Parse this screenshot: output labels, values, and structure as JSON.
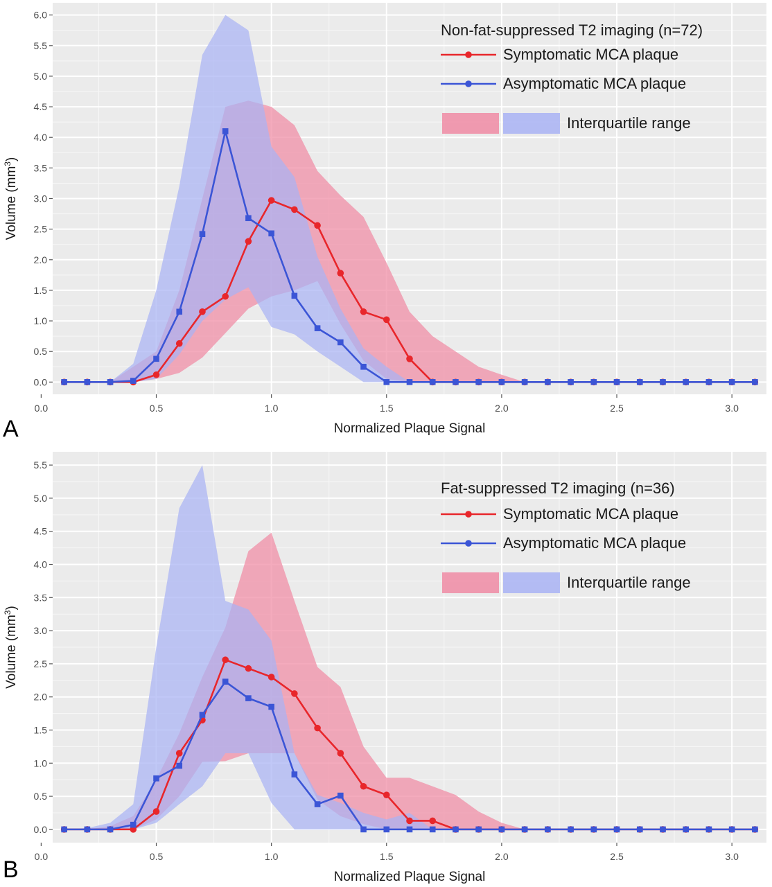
{
  "chart_data": [
    {
      "type": "line",
      "panel_label": "A",
      "title": "",
      "legend_title": "Non-fat-suppressed T2 imaging (n=72)",
      "xlabel": "Normalized Plaque Signal",
      "ylabel": "Volume (mm",
      "ylabel_sup": "3",
      "ylabel_end": ")",
      "xlim": [
        0.05,
        3.15
      ],
      "ylim": [
        -0.2,
        6.2
      ],
      "xticks": [
        0.0,
        0.5,
        1.0,
        1.5,
        2.0,
        2.5,
        3.0
      ],
      "xtick_labels": [
        "0.0",
        "0.5",
        "1.0",
        "1.5",
        "2.0",
        "2.5",
        "3.0"
      ],
      "yticks": [
        0.0,
        0.5,
        1.0,
        1.5,
        2.0,
        2.5,
        3.0,
        3.5,
        4.0,
        4.5,
        5.0,
        5.5,
        6.0
      ],
      "ytick_labels": [
        "0.0",
        "0.5",
        "1.0",
        "1.5",
        "2.0",
        "2.5",
        "3.0",
        "3.5",
        "4.0",
        "4.5",
        "5.0",
        "5.5",
        "6.0"
      ],
      "grid": true,
      "legend_position": "top-right",
      "legend_ribbon_label": "Interquartile range",
      "series": [
        {
          "name": "Symptomatic MCA plaque",
          "color": "#e8262b",
          "marker": "circle",
          "points": [
            [
              0.1,
              0
            ],
            [
              0.2,
              0
            ],
            [
              0.3,
              0
            ],
            [
              0.4,
              0
            ],
            [
              0.5,
              0.12
            ],
            [
              0.6,
              0.63
            ],
            [
              0.7,
              1.15
            ],
            [
              0.8,
              1.4
            ],
            [
              0.9,
              2.3
            ],
            [
              1.0,
              2.97
            ],
            [
              1.1,
              2.82
            ],
            [
              1.2,
              2.56
            ],
            [
              1.3,
              1.78
            ],
            [
              1.4,
              1.15
            ],
            [
              1.5,
              1.02
            ],
            [
              1.6,
              0.38
            ],
            [
              1.7,
              0
            ],
            [
              1.8,
              0
            ],
            [
              1.9,
              0
            ],
            [
              2.0,
              0
            ],
            [
              2.1,
              0
            ],
            [
              2.2,
              0
            ],
            [
              2.3,
              0
            ],
            [
              2.4,
              0
            ],
            [
              2.5,
              0
            ],
            [
              2.6,
              0
            ],
            [
              2.7,
              0
            ],
            [
              2.8,
              0
            ],
            [
              2.9,
              0
            ],
            [
              3.0,
              0
            ],
            [
              3.1,
              0
            ]
          ],
          "ribbon": [
            [
              0.1,
              0,
              0
            ],
            [
              0.2,
              0,
              0
            ],
            [
              0.3,
              0,
              0
            ],
            [
              0.4,
              0,
              0.25
            ],
            [
              0.5,
              0.05,
              0.5
            ],
            [
              0.6,
              0.15,
              1.5
            ],
            [
              0.7,
              0.4,
              3.0
            ],
            [
              0.8,
              0.8,
              4.5
            ],
            [
              0.9,
              1.2,
              4.6
            ],
            [
              1.0,
              1.4,
              4.5
            ],
            [
              1.1,
              1.5,
              4.2
            ],
            [
              1.2,
              1.65,
              3.45
            ],
            [
              1.3,
              0.95,
              3.05
            ],
            [
              1.4,
              0.35,
              2.7
            ],
            [
              1.5,
              0.05,
              1.95
            ],
            [
              1.6,
              0,
              1.15
            ],
            [
              1.7,
              0,
              0.75
            ],
            [
              1.8,
              0,
              0.5
            ],
            [
              1.9,
              0,
              0.25
            ],
            [
              2.0,
              0,
              0.12
            ],
            [
              2.1,
              0,
              0
            ]
          ],
          "ribbon_color": "#f08ba4"
        },
        {
          "name": "Asymptomatic MCA plaque",
          "color": "#3b55d6",
          "marker": "square",
          "points": [
            [
              0.1,
              0
            ],
            [
              0.2,
              0
            ],
            [
              0.3,
              0
            ],
            [
              0.4,
              0.02
            ],
            [
              0.5,
              0.38
            ],
            [
              0.6,
              1.15
            ],
            [
              0.7,
              2.42
            ],
            [
              0.8,
              4.1
            ],
            [
              0.9,
              2.68
            ],
            [
              1.0,
              2.43
            ],
            [
              1.1,
              1.41
            ],
            [
              1.2,
              0.88
            ],
            [
              1.3,
              0.65
            ],
            [
              1.4,
              0.25
            ],
            [
              1.5,
              0
            ],
            [
              1.6,
              0
            ],
            [
              1.7,
              0
            ],
            [
              1.8,
              0
            ],
            [
              1.9,
              0
            ],
            [
              2.0,
              0
            ],
            [
              2.1,
              0
            ],
            [
              2.2,
              0
            ],
            [
              2.3,
              0
            ],
            [
              2.4,
              0
            ],
            [
              2.5,
              0
            ],
            [
              2.6,
              0
            ],
            [
              2.7,
              0
            ],
            [
              2.8,
              0
            ],
            [
              2.9,
              0
            ],
            [
              3.0,
              0
            ],
            [
              3.1,
              0
            ]
          ],
          "ribbon": [
            [
              0.1,
              0,
              0
            ],
            [
              0.2,
              0,
              0
            ],
            [
              0.3,
              0,
              0
            ],
            [
              0.4,
              0,
              0.3
            ],
            [
              0.5,
              0.05,
              1.5
            ],
            [
              0.6,
              0.45,
              3.2
            ],
            [
              0.7,
              1.0,
              5.35
            ],
            [
              0.8,
              1.35,
              6.0
            ],
            [
              0.9,
              1.55,
              5.75
            ],
            [
              1.0,
              0.9,
              3.85
            ],
            [
              1.1,
              0.78,
              3.35
            ],
            [
              1.2,
              0.5,
              2.05
            ],
            [
              1.3,
              0.25,
              1.2
            ],
            [
              1.4,
              0,
              0.55
            ],
            [
              1.5,
              0,
              0.25
            ],
            [
              1.6,
              0,
              0
            ]
          ],
          "ribbon_color": "#a9b3f4"
        }
      ]
    },
    {
      "type": "line",
      "panel_label": "B",
      "title": "",
      "legend_title": "Fat-suppressed T2 imaging (n=36)",
      "xlabel": "Normalized Plaque Signal",
      "ylabel": "Volume (mm",
      "ylabel_sup": "3",
      "ylabel_end": ")",
      "xlim": [
        0.05,
        3.15
      ],
      "ylim": [
        -0.2,
        5.7
      ],
      "xticks": [
        0.0,
        0.5,
        1.0,
        1.5,
        2.0,
        2.5,
        3.0
      ],
      "xtick_labels": [
        "0.0",
        "0.5",
        "1.0",
        "1.5",
        "2.0",
        "2.5",
        "3.0"
      ],
      "yticks": [
        0.0,
        0.5,
        1.0,
        1.5,
        2.0,
        2.5,
        3.0,
        3.5,
        4.0,
        4.5,
        5.0,
        5.5
      ],
      "ytick_labels": [
        "0.0",
        "0.5",
        "1.0",
        "1.5",
        "2.0",
        "2.5",
        "3.0",
        "3.5",
        "4.0",
        "4.5",
        "5.0",
        "5.5"
      ],
      "grid": true,
      "legend_position": "top-right",
      "legend_ribbon_label": "Interquartile range",
      "series": [
        {
          "name": "Symptomatic MCA plaque",
          "color": "#e8262b",
          "marker": "circle",
          "points": [
            [
              0.1,
              0
            ],
            [
              0.2,
              0
            ],
            [
              0.3,
              0
            ],
            [
              0.4,
              0
            ],
            [
              0.5,
              0.27
            ],
            [
              0.6,
              1.15
            ],
            [
              0.7,
              1.65
            ],
            [
              0.8,
              2.56
            ],
            [
              0.9,
              2.43
            ],
            [
              1.0,
              2.3
            ],
            [
              1.1,
              2.05
            ],
            [
              1.2,
              1.53
            ],
            [
              1.3,
              1.15
            ],
            [
              1.4,
              0.65
            ],
            [
              1.5,
              0.52
            ],
            [
              1.6,
              0.13
            ],
            [
              1.7,
              0.13
            ],
            [
              1.8,
              0
            ],
            [
              1.9,
              0
            ],
            [
              2.0,
              0
            ],
            [
              2.1,
              0
            ],
            [
              2.2,
              0
            ],
            [
              2.3,
              0
            ],
            [
              2.4,
              0
            ],
            [
              2.5,
              0
            ],
            [
              2.6,
              0
            ],
            [
              2.7,
              0
            ],
            [
              2.8,
              0
            ],
            [
              2.9,
              0
            ],
            [
              3.0,
              0
            ],
            [
              3.1,
              0
            ]
          ],
          "ribbon": [
            [
              0.1,
              0,
              0
            ],
            [
              0.2,
              0,
              0
            ],
            [
              0.3,
              0,
              0.05
            ],
            [
              0.4,
              0,
              0.2
            ],
            [
              0.5,
              0.15,
              0.75
            ],
            [
              0.6,
              0.5,
              1.45
            ],
            [
              0.7,
              1.02,
              2.3
            ],
            [
              0.8,
              1.03,
              3.05
            ],
            [
              0.9,
              1.15,
              4.2
            ],
            [
              1.0,
              1.15,
              4.48
            ],
            [
              1.1,
              1.15,
              3.45
            ],
            [
              1.2,
              0.45,
              2.45
            ],
            [
              1.3,
              0.2,
              2.15
            ],
            [
              1.4,
              0.08,
              1.25
            ],
            [
              1.5,
              0,
              0.78
            ],
            [
              1.6,
              0,
              0.78
            ],
            [
              1.7,
              0,
              0.65
            ],
            [
              1.8,
              0,
              0.52
            ],
            [
              1.9,
              0,
              0.27
            ],
            [
              2.0,
              0,
              0.1
            ],
            [
              2.1,
              0,
              0
            ]
          ],
          "ribbon_color": "#f08ba4"
        },
        {
          "name": "Asymptomatic MCA plaque",
          "color": "#3b55d6",
          "marker": "square",
          "points": [
            [
              0.1,
              0
            ],
            [
              0.2,
              0
            ],
            [
              0.3,
              0
            ],
            [
              0.4,
              0.07
            ],
            [
              0.5,
              0.77
            ],
            [
              0.6,
              0.96
            ],
            [
              0.7,
              1.73
            ],
            [
              0.8,
              2.23
            ],
            [
              0.9,
              1.98
            ],
            [
              1.0,
              1.85
            ],
            [
              1.1,
              0.83
            ],
            [
              1.2,
              0.38
            ],
            [
              1.3,
              0.51
            ],
            [
              1.4,
              0
            ],
            [
              1.5,
              0
            ],
            [
              1.6,
              0
            ],
            [
              1.7,
              0
            ],
            [
              1.8,
              0
            ],
            [
              1.9,
              0
            ],
            [
              2.0,
              0
            ],
            [
              2.1,
              0
            ],
            [
              2.2,
              0
            ],
            [
              2.3,
              0
            ],
            [
              2.4,
              0
            ],
            [
              2.5,
              0
            ],
            [
              2.6,
              0
            ],
            [
              2.7,
              0
            ],
            [
              2.8,
              0
            ],
            [
              2.9,
              0
            ],
            [
              3.0,
              0
            ],
            [
              3.1,
              0
            ]
          ],
          "ribbon": [
            [
              0.1,
              0,
              0
            ],
            [
              0.2,
              0,
              0.02
            ],
            [
              0.3,
              0,
              0.1
            ],
            [
              0.4,
              0,
              0.38
            ],
            [
              0.5,
              0.1,
              2.75
            ],
            [
              0.6,
              0.38,
              4.85
            ],
            [
              0.7,
              0.65,
              5.5
            ],
            [
              0.8,
              1.15,
              3.45
            ],
            [
              0.9,
              1.15,
              3.32
            ],
            [
              1.0,
              0.4,
              2.85
            ],
            [
              1.1,
              0,
              1.15
            ],
            [
              1.2,
              0,
              0.52
            ],
            [
              1.3,
              0,
              0.4
            ],
            [
              1.4,
              0,
              0.25
            ],
            [
              1.5,
              0,
              0.15
            ],
            [
              1.6,
              0,
              0.25
            ],
            [
              1.7,
              0,
              0
            ]
          ],
          "ribbon_color": "#a9b3f4"
        }
      ]
    }
  ]
}
